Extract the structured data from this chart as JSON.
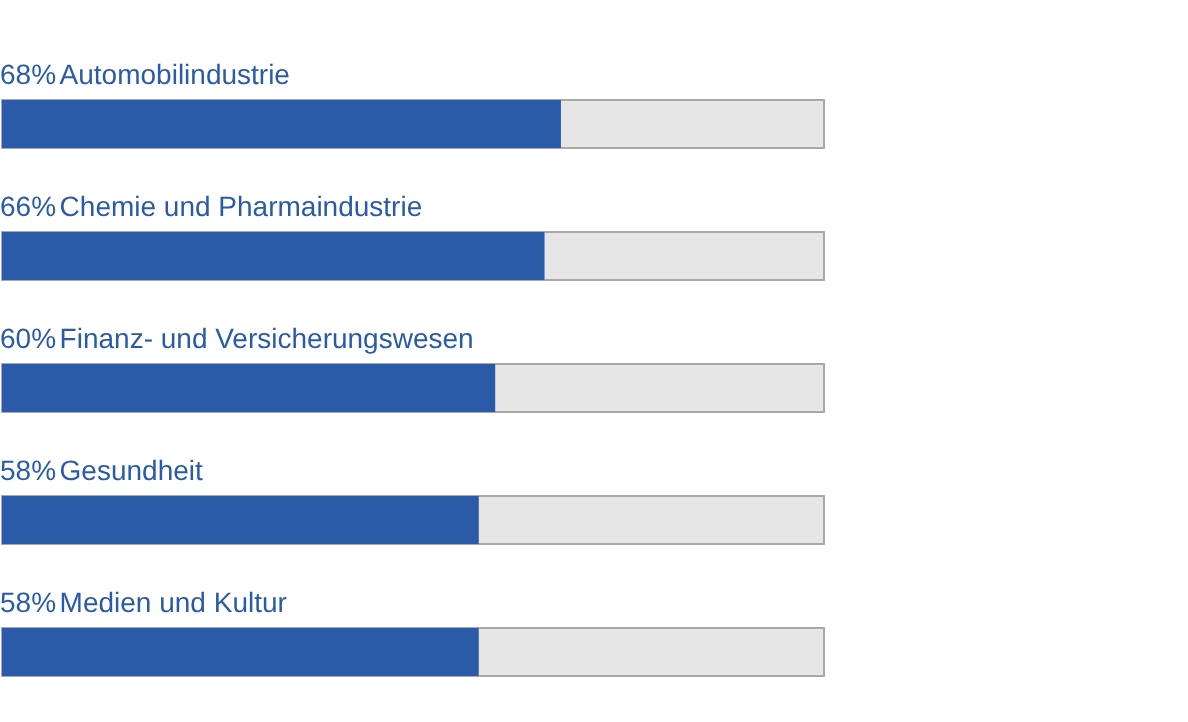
{
  "chart_data": {
    "type": "bar",
    "orientation": "horizontal",
    "categories": [
      "Automobilindustrie",
      "Chemie und Pharmaindustrie",
      "Finanz- und Versicherungswesen",
      "Gesundheit",
      "Medien und Kultur"
    ],
    "values": [
      68,
      66,
      60,
      58,
      58
    ],
    "value_labels": [
      "68%",
      "66%",
      "60%",
      "58%",
      "58%"
    ],
    "color": "#2a5ba8",
    "xlim": [
      0,
      100
    ],
    "tick_labels": false,
    "grid": false,
    "legend": false
  }
}
